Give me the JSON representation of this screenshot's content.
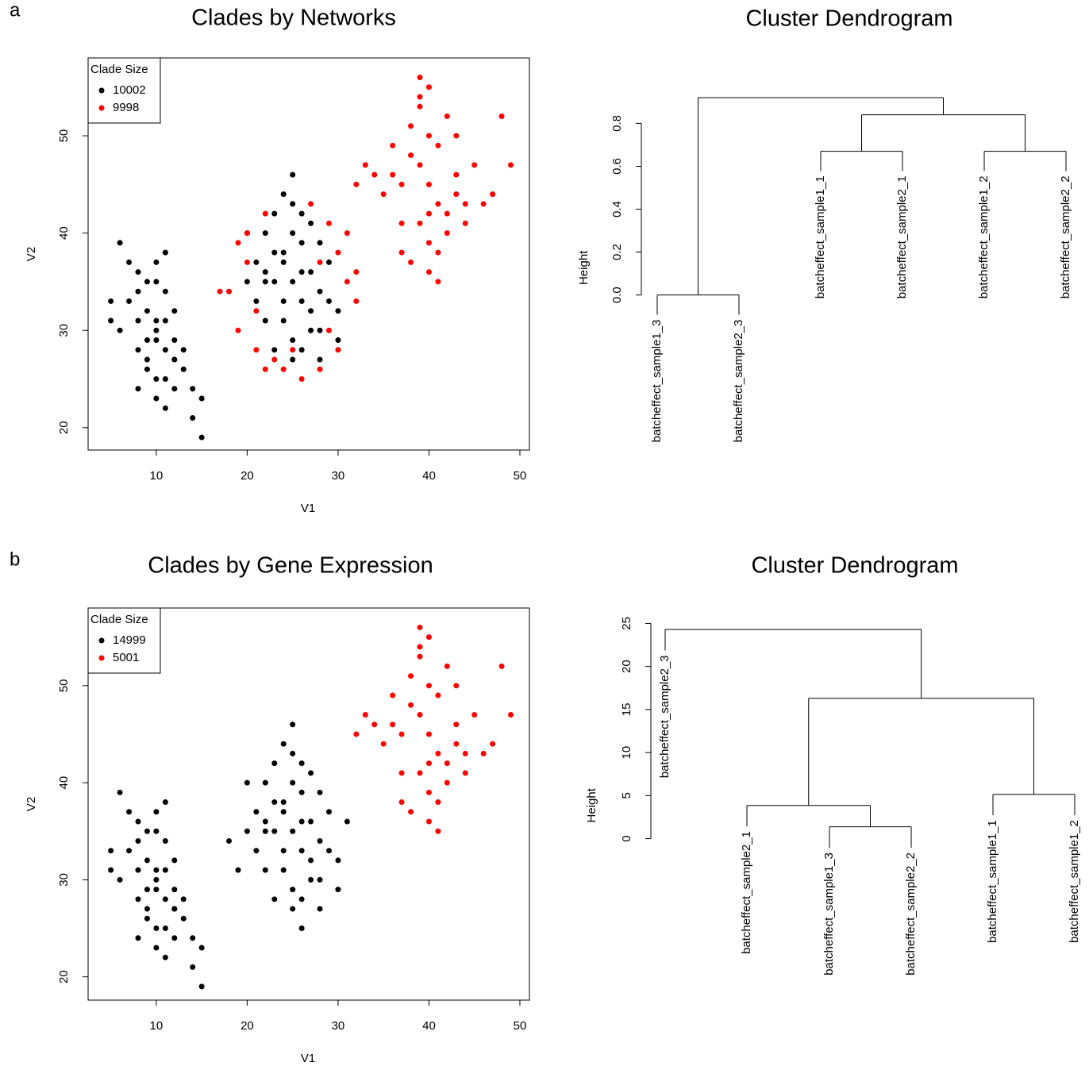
{
  "panel_labels": [
    "a",
    "b"
  ],
  "chart_data": [
    {
      "type": "scatter",
      "title": "Clades by Networks",
      "xlabel": "V1",
      "ylabel": "V2",
      "legend_title": "Clade Size",
      "legend": "topleft",
      "xlim": [
        2.5,
        51.05
      ],
      "ylim": [
        17.7,
        58
      ],
      "xticks": [
        10,
        20,
        30,
        40,
        50
      ],
      "yticks": [
        20,
        30,
        40,
        50
      ],
      "series": [
        {
          "name": "10002",
          "color": "#000000",
          "x": [
            10,
            9,
            11,
            8,
            12,
            10,
            9,
            11,
            7,
            13,
            10,
            8,
            12,
            9,
            11,
            6,
            14,
            10,
            8,
            12,
            5,
            15,
            9,
            11,
            10,
            7,
            13,
            10,
            12,
            8,
            11,
            9,
            6,
            14,
            10,
            15,
            5,
            12,
            8,
            11,
            25,
            24,
            26,
            23,
            27,
            25,
            22,
            28,
            24,
            26,
            21,
            29,
            25,
            23,
            27,
            20,
            30,
            24,
            26,
            22,
            28,
            25,
            23,
            27,
            21,
            29,
            25,
            24,
            26,
            22,
            28,
            23,
            27,
            24,
            26,
            25,
            20,
            30,
            22,
            28
          ],
          "y": [
            30,
            32,
            28,
            34,
            27,
            31,
            29,
            31,
            33,
            26,
            29,
            31,
            29,
            35,
            25,
            30,
            24,
            35,
            28,
            32,
            33,
            23,
            26,
            34,
            23,
            37,
            28,
            37,
            24,
            36,
            22,
            27,
            39,
            21,
            25,
            19,
            31,
            27,
            24,
            38,
            35,
            37,
            33,
            38,
            32,
            40,
            35,
            34,
            31,
            39,
            37,
            33,
            29,
            42,
            36,
            35,
            32,
            44,
            28,
            40,
            30,
            43,
            28,
            41,
            33,
            37,
            27,
            33,
            36,
            31,
            39,
            35,
            30,
            38,
            42,
            46,
            40,
            29,
            36,
            27
          ]
        },
        {
          "name": "9998",
          "color": "#ff0000",
          "x": [
            18,
            19,
            20,
            21,
            22,
            30,
            31,
            32,
            29,
            30,
            20,
            21,
            28,
            27,
            26,
            24,
            31,
            19,
            22,
            29,
            25,
            23,
            17,
            32,
            28,
            40,
            39,
            41,
            38,
            42,
            40,
            37,
            43,
            39,
            41,
            36,
            44,
            40,
            38,
            42,
            35,
            45,
            39,
            41,
            37,
            43,
            40,
            34,
            46,
            38,
            42,
            36,
            44,
            40,
            33,
            47,
            39,
            41,
            49,
            32,
            48,
            40,
            37,
            43,
            39
          ],
          "y": [
            34,
            30,
            37,
            28,
            26,
            38,
            35,
            33,
            41,
            28,
            40,
            32,
            26,
            43,
            25,
            26,
            40,
            39,
            42,
            30,
            28,
            27,
            34,
            36,
            37,
            45,
            47,
            43,
            48,
            42,
            50,
            45,
            44,
            41,
            49,
            46,
            43,
            39,
            51,
            40,
            44,
            47,
            53,
            38,
            41,
            50,
            55,
            46,
            43,
            37,
            52,
            49,
            41,
            36,
            47,
            44,
            56,
            35,
            47,
            45,
            52,
            42,
            38,
            46,
            54
          ]
        }
      ]
    },
    {
      "type": "dendrogram",
      "title": "Cluster Dendrogram",
      "ylabel": "Height",
      "ylim": [
        -0.09,
        0.92
      ],
      "yticks": [
        {
          "value": 0,
          "label": "0.0"
        },
        0.2,
        0.4,
        0.6,
        0.8
      ],
      "tree": {
        "height": 0.92,
        "children": [
          {
            "height": 0,
            "children": [
              {
                "label": "batcheffect_sample1_3"
              },
              {
                "label": "batcheffect_sample2_3"
              }
            ]
          },
          {
            "height": 0.84,
            "children": [
              {
                "height": 0.67,
                "children": [
                  {
                    "label": "batcheffect_sample1_1"
                  },
                  {
                    "label": "batcheffect_sample2_1"
                  }
                ]
              },
              {
                "height": 0.67,
                "children": [
                  {
                    "label": "batcheffect_sample1_2"
                  },
                  {
                    "label": "batcheffect_sample2_2"
                  }
                ]
              }
            ]
          }
        ]
      }
    },
    {
      "type": "scatter",
      "title": "Clades by Gene Expression",
      "xlabel": "V1",
      "ylabel": "V2",
      "legend_title": "Clade Size",
      "legend": "topleft",
      "xlim": [
        2.5,
        51.05
      ],
      "ylim": [
        17.6,
        58
      ],
      "xticks": [
        10,
        20,
        30,
        40,
        50
      ],
      "yticks": [
        20,
        30,
        40,
        50
      ],
      "series": [
        {
          "name": "14999",
          "color": "#000000",
          "x": [
            10,
            9,
            11,
            8,
            12,
            10,
            9,
            11,
            7,
            13,
            10,
            8,
            12,
            9,
            11,
            6,
            14,
            10,
            8,
            12,
            5,
            15,
            9,
            11,
            10,
            7,
            13,
            10,
            12,
            8,
            11,
            9,
            6,
            14,
            10,
            15,
            5,
            12,
            8,
            11,
            25,
            24,
            26,
            23,
            27,
            25,
            22,
            28,
            24,
            26,
            21,
            29,
            25,
            23,
            27,
            20,
            30,
            24,
            26,
            22,
            28,
            25,
            23,
            27,
            21,
            29,
            25,
            24,
            26,
            22,
            28,
            23,
            27,
            24,
            26,
            25,
            20,
            30,
            22,
            28,
            18,
            19,
            31,
            26
          ],
          "y": [
            30,
            32,
            28,
            34,
            27,
            31,
            29,
            31,
            33,
            26,
            29,
            31,
            29,
            35,
            25,
            30,
            24,
            35,
            28,
            32,
            33,
            23,
            26,
            34,
            23,
            37,
            28,
            37,
            24,
            36,
            22,
            27,
            39,
            21,
            25,
            19,
            31,
            27,
            24,
            38,
            35,
            37,
            33,
            38,
            32,
            40,
            35,
            34,
            31,
            39,
            37,
            33,
            29,
            42,
            36,
            35,
            32,
            44,
            28,
            40,
            30,
            43,
            28,
            41,
            33,
            37,
            27,
            33,
            36,
            31,
            39,
            35,
            30,
            38,
            42,
            46,
            40,
            29,
            36,
            27,
            34,
            31,
            36,
            25
          ]
        },
        {
          "name": "5001",
          "color": "#ff0000",
          "x": [
            40,
            39,
            41,
            38,
            42,
            40,
            37,
            43,
            39,
            41,
            36,
            44,
            40,
            38,
            42,
            35,
            45,
            39,
            41,
            37,
            43,
            40,
            34,
            46,
            38,
            42,
            36,
            44,
            40,
            33,
            47,
            39,
            41,
            49,
            32,
            48,
            40,
            37,
            43,
            39
          ],
          "y": [
            45,
            47,
            43,
            48,
            42,
            50,
            45,
            44,
            41,
            49,
            46,
            43,
            39,
            51,
            40,
            44,
            47,
            53,
            38,
            41,
            50,
            55,
            46,
            43,
            37,
            52,
            49,
            41,
            36,
            47,
            44,
            56,
            35,
            47,
            45,
            52,
            42,
            38,
            46,
            54
          ]
        }
      ]
    },
    {
      "type": "dendrogram",
      "title": "Cluster Dendrogram",
      "ylabel": "Height",
      "ylim": [
        -1.05,
        24.3
      ],
      "yticks": [
        0,
        5,
        10,
        15,
        20,
        25
      ],
      "tree": {
        "height": 24.3,
        "children": [
          {
            "label": "batcheffect_sample2_3"
          },
          {
            "height": 16.3,
            "children": [
              {
                "height": 3.86,
                "children": [
                  {
                    "label": "batcheffect_sample2_1"
                  },
                  {
                    "height": 1.38,
                    "children": [
                      {
                        "label": "batcheffect_sample1_3"
                      },
                      {
                        "label": "batcheffect_sample2_2"
                      }
                    ]
                  }
                ]
              },
              {
                "height": 5.15,
                "children": [
                  {
                    "label": "batcheffect_sample1_1"
                  },
                  {
                    "label": "batcheffect_sample1_2"
                  }
                ]
              }
            ]
          }
        ]
      }
    }
  ]
}
